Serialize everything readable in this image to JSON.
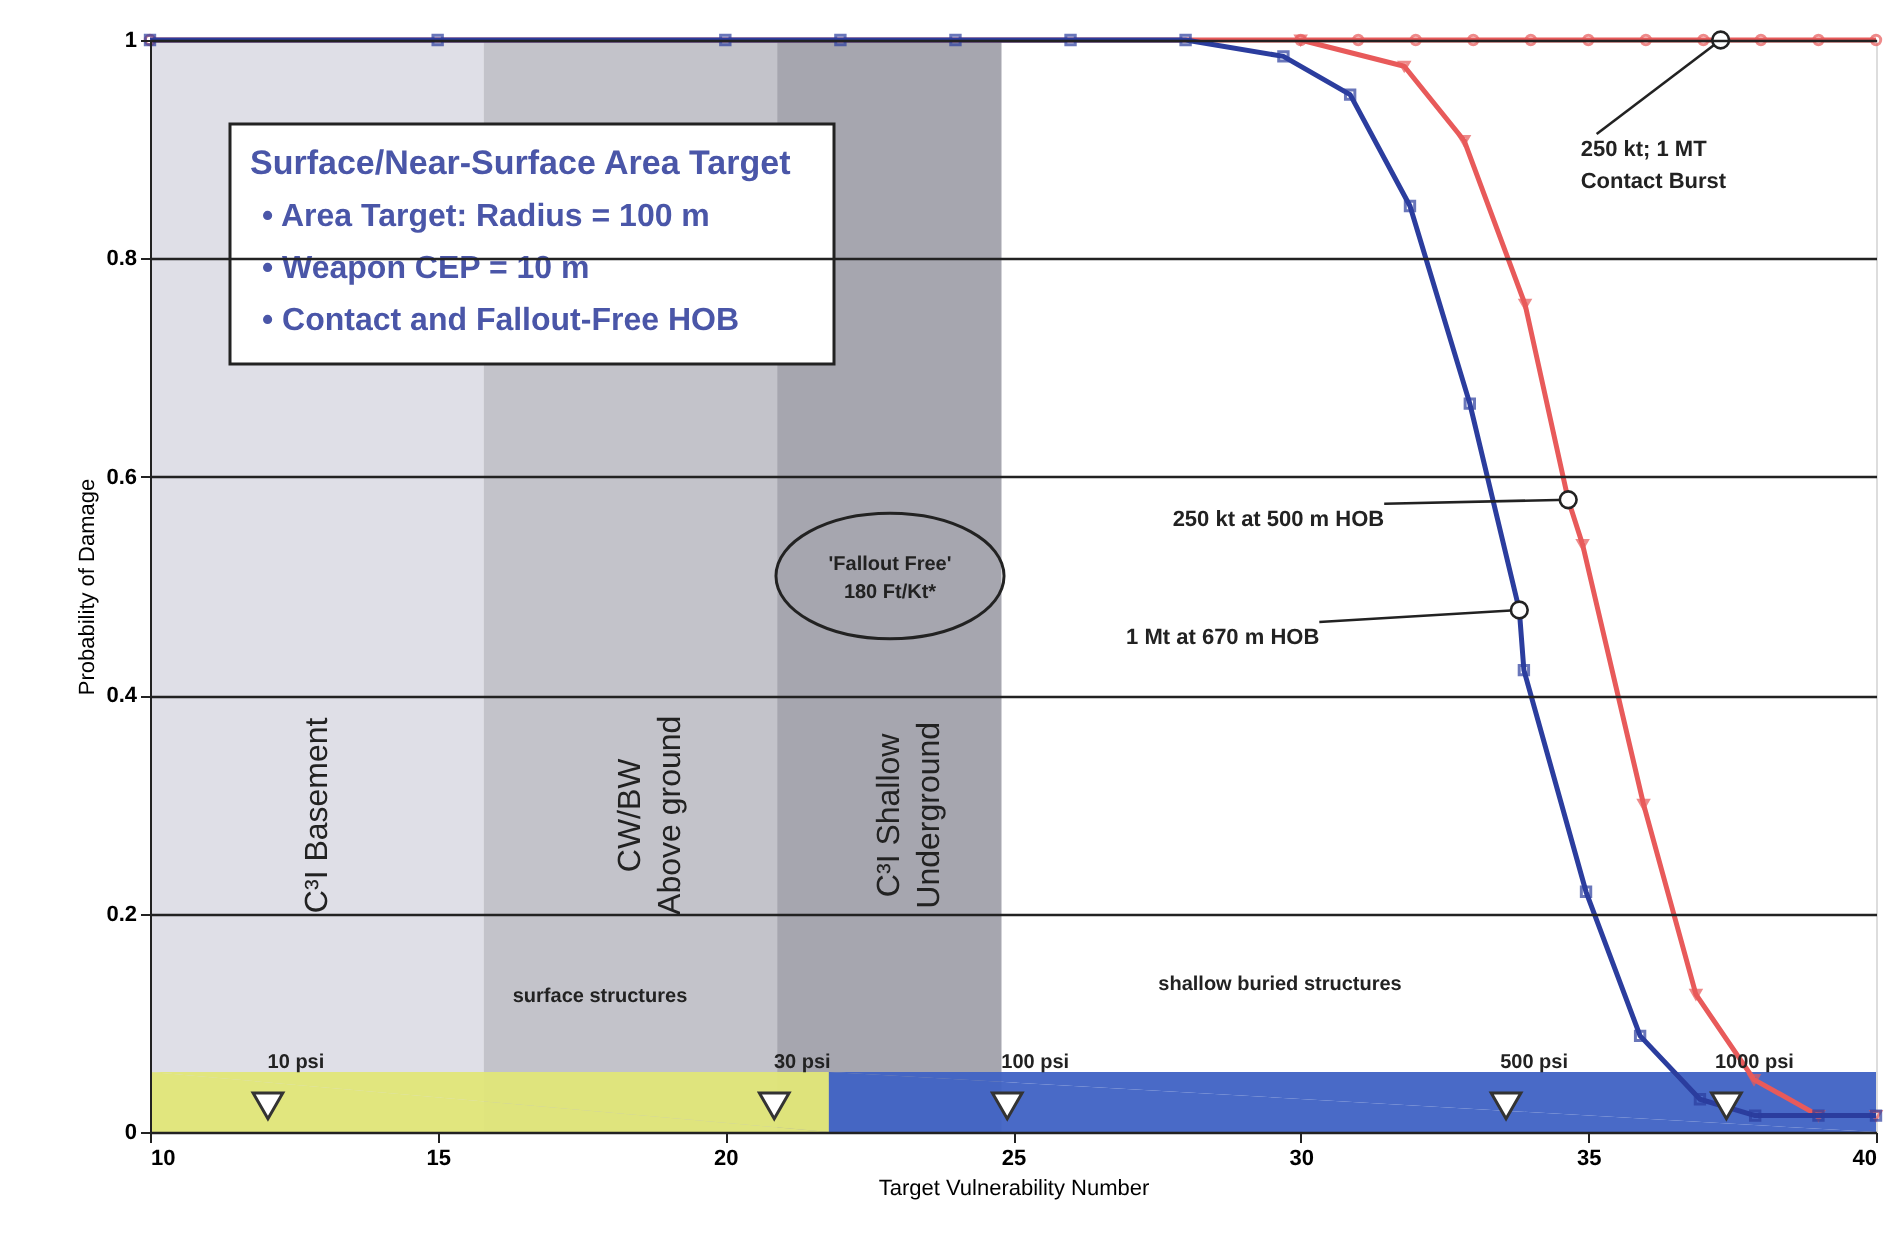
{
  "chart_data": {
    "type": "line",
    "xlabel": "Target Vulnerability Number",
    "ylabel": "Probability of Damage",
    "xlim": [
      10,
      40
    ],
    "ylim": [
      0,
      1
    ],
    "xticks": [
      10,
      15,
      20,
      25,
      30,
      35,
      40
    ],
    "yticks": [
      0,
      0.2,
      0.4,
      0.6,
      0.8,
      1
    ],
    "grid": "y",
    "series": [
      {
        "color": "#e85a5a",
        "marker": "circle",
        "x": [
          10,
          30,
          31,
          32,
          33,
          34,
          35,
          36,
          37,
          37.3,
          38,
          39,
          40
        ],
        "values": [
          1,
          1,
          1,
          1,
          1,
          1,
          1,
          1,
          1,
          1,
          1,
          1,
          1
        ]
      },
      {
        "color": "#e85a5a",
        "marker": "triangle",
        "x": [
          30,
          31.8,
          32.84,
          33.9,
          34.65,
          34.9,
          35.96,
          36.87,
          37.88,
          39,
          40
        ],
        "values": [
          1,
          0.976,
          0.908,
          0.758,
          0.579,
          0.538,
          0.3,
          0.126,
          0.048,
          0.015,
          0.015
        ]
      },
      {
        "color": "#2b3d9e",
        "marker": "square",
        "x": [
          10,
          15,
          20,
          22,
          24,
          26,
          28,
          29.7,
          30.86,
          31.9,
          32.94,
          33.8,
          33.88,
          34.96,
          35.9,
          36.94,
          37.9,
          39,
          40
        ],
        "values": [
          1,
          1,
          1,
          1,
          1,
          1,
          1,
          0.985,
          0.95,
          0.848,
          0.667,
          0.478,
          0.423,
          0.22,
          0.088,
          0.03,
          0.015,
          0.015,
          0.015
        ]
      },
      {
        "type": "area",
        "color": "#e0e678",
        "x": [
          10,
          21.8
        ],
        "values": [
          0.055,
          0.055
        ]
      },
      {
        "type": "area",
        "color": "#3f62c4",
        "x": [
          21.8,
          40
        ],
        "values": [
          0.055,
          0.055
        ]
      },
      {
        "type": "scatter",
        "color": "#ffffff",
        "marker": "triangle",
        "x": [
          12.05,
          20.85,
          24.9,
          33.57,
          37.4
        ],
        "values": [
          0.024,
          0.024,
          0.024,
          0.024,
          0.024
        ]
      }
    ],
    "bands": [
      {
        "axis": "x",
        "from": 10,
        "to": 15.8,
        "label": "C³I Basement",
        "color": "#dcdce4"
      },
      {
        "axis": "x",
        "from": 15.8,
        "to": 20.9,
        "label": "CW/BW\nAbove ground",
        "color": "#bdbdc4"
      },
      {
        "axis": "x",
        "from": 20.9,
        "to": 24.8,
        "label": "C³I Shallow\nUnderground",
        "color": "#9c9ca6"
      }
    ],
    "annotations": [
      "Surface/Near-Surface Area Target",
      "• Area Target: Radius = 100 m",
      "• Weapon CEP = 10 m",
      "• Contact and Fallout-Free HOB",
      "'Fallout Free'\n180 Ft/Kt*",
      "surface structures",
      "shallow buried structures",
      {
        "text": "250 kt; 1 MT\nContact Burst",
        "x": 37.3,
        "y": 1
      },
      {
        "text": "250 kt at 500 m HOB",
        "x": 34.65,
        "y": 0.579
      },
      {
        "text": "1 Mt at 670 m HOB",
        "x": 33.8,
        "y": 0.478
      },
      {
        "text": "10 psi",
        "x": 12.05,
        "y": 0.024
      },
      {
        "text": "30 psi",
        "x": 20.85,
        "y": 0.024
      },
      {
        "text": "100 psi",
        "x": 24.9,
        "y": 0.024
      },
      {
        "text": "500 psi",
        "x": 33.57,
        "y": 0.024
      },
      {
        "text": "1000 psi",
        "x": 37.4,
        "y": 0.024
      }
    ]
  }
}
